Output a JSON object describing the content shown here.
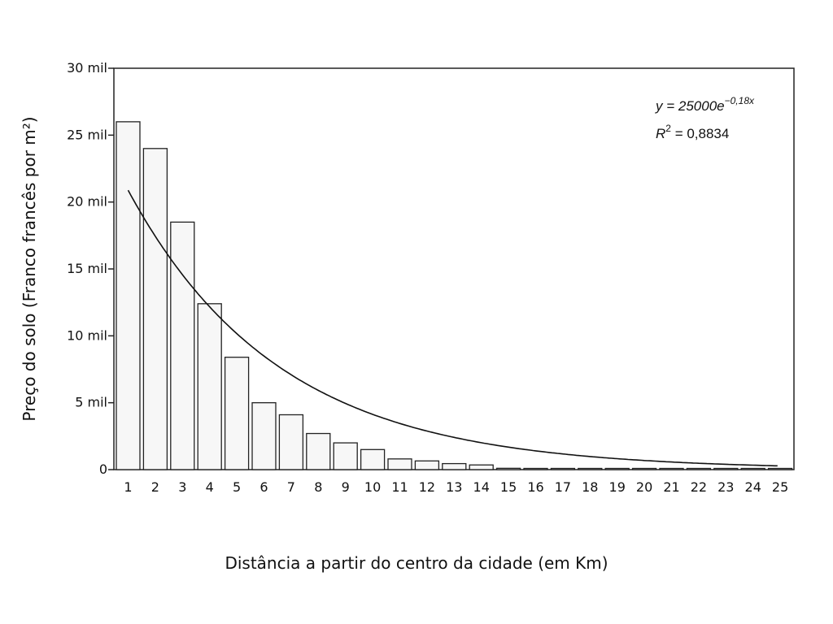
{
  "chart_data": {
    "type": "bar",
    "title": "",
    "xlabel": "Distância a partir do centro da cidade (em Km)",
    "ylabel": "Preço do solo (Franco francês por m²)",
    "ylim": [
      0,
      30000
    ],
    "y_ticks": [
      {
        "value": 0,
        "label": "0"
      },
      {
        "value": 5000,
        "label": "5 mil"
      },
      {
        "value": 10000,
        "label": "10 mil"
      },
      {
        "value": 15000,
        "label": "15 mil"
      },
      {
        "value": 20000,
        "label": "20 mil"
      },
      {
        "value": 25000,
        "label": "25 mil"
      },
      {
        "value": 30000,
        "label": "30 mil"
      }
    ],
    "categories": [
      "1",
      "2",
      "3",
      "4",
      "5",
      "6",
      "7",
      "8",
      "9",
      "10",
      "11",
      "12",
      "13",
      "14",
      "15",
      "16",
      "17",
      "18",
      "19",
      "20",
      "21",
      "22",
      "23",
      "24",
      "25"
    ],
    "values": [
      26000,
      24000,
      18500,
      12400,
      8400,
      5000,
      4100,
      2700,
      2000,
      1500,
      800,
      650,
      450,
      350,
      100,
      50,
      40,
      30,
      20,
      15,
      10,
      8,
      6,
      5,
      3
    ],
    "trendline": {
      "type": "exponential",
      "a": 25000,
      "b": -0.18
    },
    "annotation": {
      "eq_prefix": "y = 25000",
      "eq_base": "e",
      "eq_exp": "−0,18x",
      "r2_sym": "R",
      "r2_exp": "2",
      "r2_value": " = 0,8834"
    },
    "grid": false,
    "legend": "none"
  }
}
